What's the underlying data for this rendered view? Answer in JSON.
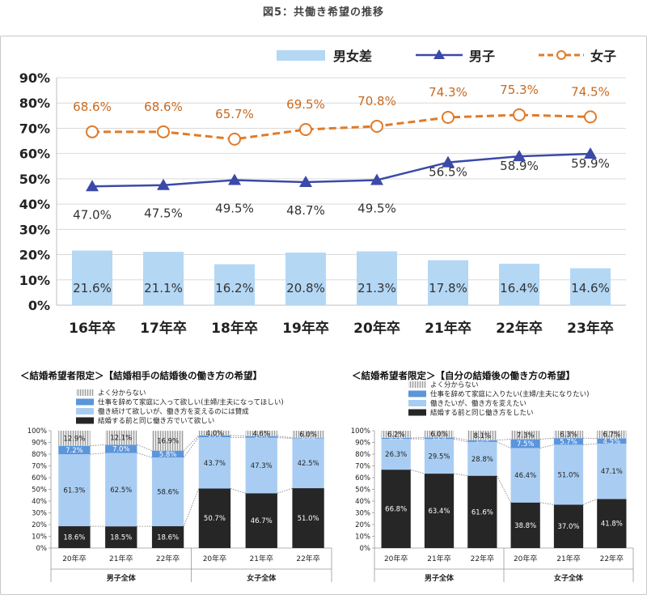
{
  "page_title": "図5：共働き希望の推移",
  "chart_data": [
    {
      "type": "line",
      "categories": [
        "16年卒",
        "17年卒",
        "18年卒",
        "19年卒",
        "20年卒",
        "21年卒",
        "22年卒",
        "23年卒"
      ],
      "ylim": [
        0,
        90
      ],
      "yticks": [
        "0%",
        "10%",
        "20%",
        "30%",
        "40%",
        "50%",
        "60%",
        "70%",
        "80%",
        "90%"
      ],
      "grid": true,
      "legend_position": "top-right",
      "series": [
        {
          "name": "男女差",
          "kind": "bar",
          "color": "#b4d7f4",
          "values": [
            21.6,
            21.1,
            16.2,
            20.8,
            21.3,
            17.8,
            16.4,
            14.6
          ],
          "labels": [
            "21.6%",
            "21.1%",
            "16.2%",
            "20.8%",
            "21.3%",
            "17.8%",
            "16.4%",
            "14.6%"
          ]
        },
        {
          "name": "男子",
          "kind": "line",
          "marker": "triangle",
          "color": "#3b4aa8",
          "values": [
            47.0,
            47.5,
            49.5,
            48.7,
            49.5,
            56.5,
            58.9,
            59.9
          ],
          "labels": [
            "47.0%",
            "47.5%",
            "49.5%",
            "48.7%",
            "49.5%",
            "56.5%",
            "58.9%",
            "59.9%"
          ]
        },
        {
          "name": "女子",
          "kind": "line",
          "marker": "circle",
          "dashed": true,
          "color": "#e07b2a",
          "values": [
            68.6,
            68.6,
            65.7,
            69.5,
            70.8,
            74.3,
            75.3,
            74.5
          ],
          "labels": [
            "68.6%",
            "68.6%",
            "65.7%",
            "69.5%",
            "70.8%",
            "74.3%",
            "75.3%",
            "74.5%"
          ]
        }
      ]
    },
    {
      "type": "bar",
      "stacked": true,
      "title": "＜結婚希望者限定＞【結婚相手の結婚後の働き方の希望】",
      "categories": [
        "20年卒",
        "21年卒",
        "22年卒",
        "20年卒",
        "21年卒",
        "22年卒"
      ],
      "groups": [
        "男子全体",
        "女子全体"
      ],
      "ylim": [
        0,
        100
      ],
      "yticks": [
        "0%",
        "10%",
        "20%",
        "30%",
        "40%",
        "50%",
        "60%",
        "70%",
        "80%",
        "90%",
        "100%"
      ],
      "series": [
        {
          "name": "結婚する前と同じ働き方でいて欲しい",
          "color": "#262626",
          "values": [
            18.6,
            18.5,
            18.6,
            50.7,
            46.7,
            51.0
          ],
          "labels": [
            "18.6%",
            "18.5%",
            "18.6%",
            "50.7%",
            "46.7%",
            "51.0%"
          ]
        },
        {
          "name": "働き続けて欲しいが、働き方を変えるのには賛成",
          "color": "#a9cdf2",
          "values": [
            61.3,
            62.5,
            58.6,
            43.7,
            47.3,
            42.5
          ],
          "labels": [
            "61.3%",
            "62.5%",
            "58.6%",
            "43.7%",
            "47.3%",
            "42.5%"
          ]
        },
        {
          "name": "仕事を辞めて家庭に入って欲しい(主婦/主夫になってほしい)",
          "color": "#5b95dc",
          "values": [
            7.2,
            7.0,
            5.8,
            1.6,
            1.4,
            0.5
          ],
          "labels": [
            "7.2%",
            "7.0%",
            "5.8%",
            "1.6%",
            "1.4%",
            "0.5%"
          ]
        },
        {
          "name": "よく分からない",
          "color": "#c9c9c9",
          "hatch": true,
          "values": [
            12.9,
            12.1,
            16.9,
            4.0,
            4.6,
            6.0
          ],
          "labels": [
            "12.9%",
            "12.1%",
            "16.9%",
            "4.0%",
            "4.6%",
            "6.0%"
          ]
        }
      ]
    },
    {
      "type": "bar",
      "stacked": true,
      "title": "＜結婚希望者限定＞【自分の結婚後の働き方の希望】",
      "categories": [
        "20年卒",
        "21年卒",
        "22年卒",
        "20年卒",
        "21年卒",
        "22年卒"
      ],
      "groups": [
        "男子全体",
        "女子全体"
      ],
      "ylim": [
        0,
        100
      ],
      "yticks": [
        "0%",
        "10%",
        "20%",
        "30%",
        "40%",
        "50%",
        "60%",
        "70%",
        "80%",
        "90%",
        "100%"
      ],
      "series": [
        {
          "name": "結婚する前と同じ働き方をしたい",
          "color": "#262626",
          "values": [
            66.8,
            63.4,
            61.6,
            38.8,
            37.0,
            41.8
          ],
          "labels": [
            "66.8%",
            "63.4%",
            "61.6%",
            "38.8%",
            "37.0%",
            "41.8%"
          ]
        },
        {
          "name": "働きたいが、働き方を変えたい",
          "color": "#a9cdf2",
          "values": [
            26.3,
            29.5,
            28.8,
            46.4,
            51.0,
            47.1
          ],
          "labels": [
            "26.3%",
            "29.5%",
            "28.8%",
            "46.4%",
            "51.0%",
            "47.1%"
          ]
        },
        {
          "name": "仕事を辞めて家庭に入りたい(主婦/主夫になりたい)",
          "color": "#5b95dc",
          "values": [
            0.7,
            1.2,
            1.5,
            7.5,
            5.7,
            4.5
          ],
          "labels": [
            "0.7%",
            "1.2%",
            "1.5%",
            "7.5%",
            "5.7%",
            "4.5%"
          ]
        },
        {
          "name": "よく分からない",
          "color": "#c9c9c9",
          "hatch": true,
          "values": [
            6.2,
            6.0,
            8.1,
            7.3,
            6.3,
            6.7
          ],
          "labels": [
            "6.2%",
            "6.0%",
            "8.1%",
            "7.3%",
            "6.3%",
            "6.7%"
          ]
        }
      ]
    }
  ]
}
